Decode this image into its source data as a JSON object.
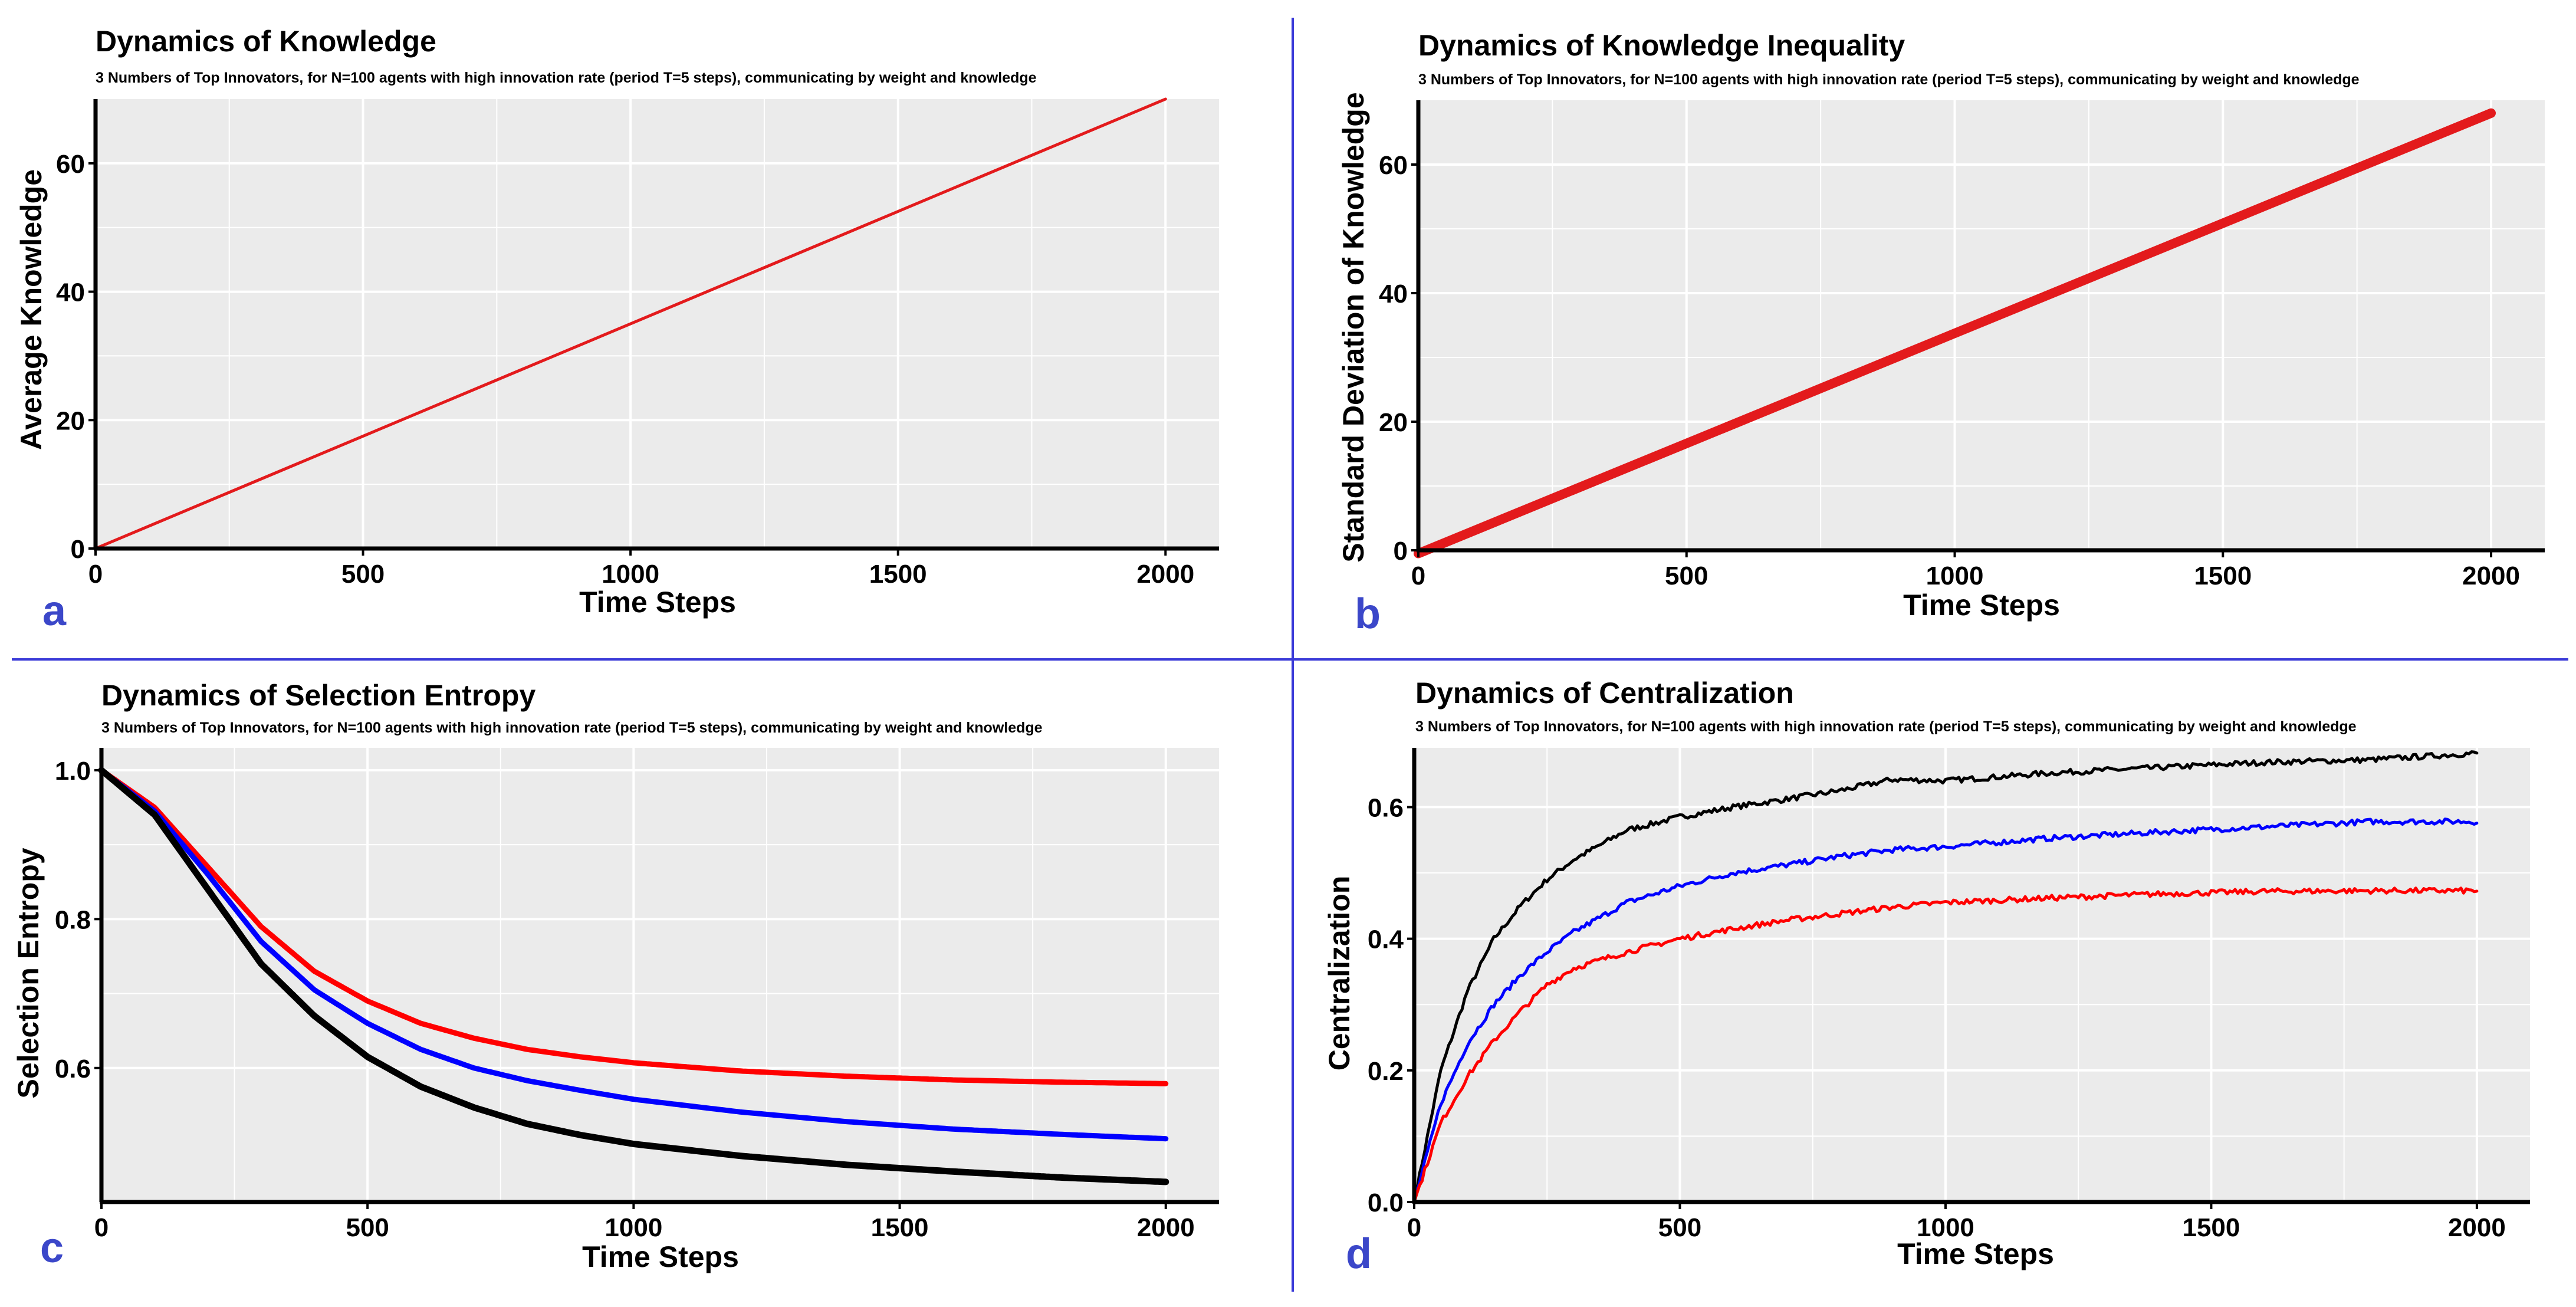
{
  "figure": {
    "divider_color": "#3a3ad8",
    "panel_background": "#ebebeb",
    "grid_color": "#ffffff",
    "letter_color": "#3b47c9"
  },
  "chart_data": [
    {
      "id": "a",
      "panel_letter": "a",
      "type": "line",
      "title": "Dynamics of Knowledge",
      "subtitle": "3 Numbers of Top Innovators, for N=100 agents with high innovation rate (period T=5 steps), communicating by weight and knowledge",
      "xlabel": "Time Steps",
      "ylabel": "Average Knowledge",
      "xlim": [
        0,
        2100
      ],
      "ylim": [
        0,
        70
      ],
      "xticks": [
        0,
        500,
        1000,
        1500,
        2000
      ],
      "yticks": [
        0,
        20,
        40,
        60
      ],
      "ytick_labels": [
        "0",
        "20",
        "40",
        "60"
      ],
      "series": [
        {
          "name": "average knowledge",
          "color": "#e31a1c",
          "stroke": 5,
          "kind": "linear",
          "x": [
            0,
            2000
          ],
          "y": [
            0,
            70
          ]
        }
      ]
    },
    {
      "id": "b",
      "panel_letter": "b",
      "type": "line",
      "title": "Dynamics of Knowledge Inequality",
      "subtitle": "3 Numbers of Top Innovators, for N=100 agents with high innovation rate (period T=5 steps), communicating by weight and knowledge",
      "xlabel": "Time Steps",
      "ylabel": "Standard Deviation of Knowledge",
      "xlim": [
        0,
        2100
      ],
      "ylim": [
        0,
        70
      ],
      "xticks": [
        0,
        500,
        1000,
        1500,
        2000
      ],
      "yticks": [
        0,
        20,
        40,
        60
      ],
      "ytick_labels": [
        "0",
        "20",
        "40",
        "60"
      ],
      "series": [
        {
          "name": "std of knowledge",
          "color": "#e31a1c",
          "stroke": 16,
          "kind": "linear",
          "x": [
            0,
            2000
          ],
          "y": [
            -0.5,
            68
          ]
        }
      ]
    },
    {
      "id": "c",
      "panel_letter": "c",
      "type": "line",
      "title": "Dynamics of Selection Entropy",
      "subtitle": "3 Numbers of Top Innovators, for N=100 agents with high innovation rate (period T=5 steps), communicating by weight and knowledge",
      "xlabel": "Time Steps",
      "ylabel": "Selection Entropy",
      "xlim": [
        0,
        2100
      ],
      "ylim": [
        0.42,
        1.03
      ],
      "xticks": [
        0,
        500,
        1000,
        1500,
        2000
      ],
      "yticks": [
        0.6,
        0.8,
        1.0
      ],
      "ytick_labels": [
        "0.6",
        "0.8",
        "1.0"
      ],
      "series": [
        {
          "name": "red",
          "color": "#ff0000",
          "stroke": 9,
          "kind": "smooth",
          "x": [
            0,
            100,
            200,
            300,
            400,
            500,
            600,
            700,
            800,
            900,
            1000,
            1200,
            1400,
            1600,
            1800,
            2000
          ],
          "y": [
            1.0,
            0.95,
            0.87,
            0.79,
            0.73,
            0.69,
            0.66,
            0.64,
            0.625,
            0.615,
            0.607,
            0.596,
            0.589,
            0.584,
            0.581,
            0.579
          ]
        },
        {
          "name": "blue",
          "color": "#0000ff",
          "stroke": 9,
          "kind": "smooth",
          "x": [
            0,
            100,
            200,
            300,
            400,
            500,
            600,
            700,
            800,
            900,
            1000,
            1200,
            1400,
            1600,
            1800,
            2000
          ],
          "y": [
            1.0,
            0.945,
            0.86,
            0.77,
            0.705,
            0.66,
            0.625,
            0.6,
            0.583,
            0.57,
            0.558,
            0.541,
            0.528,
            0.518,
            0.511,
            0.505
          ]
        },
        {
          "name": "black",
          "color": "#000000",
          "stroke": 11,
          "kind": "smooth",
          "x": [
            0,
            100,
            200,
            300,
            400,
            500,
            600,
            700,
            800,
            900,
            1000,
            1200,
            1400,
            1600,
            1800,
            2000
          ],
          "y": [
            1.0,
            0.94,
            0.84,
            0.74,
            0.67,
            0.615,
            0.575,
            0.547,
            0.525,
            0.51,
            0.498,
            0.482,
            0.47,
            0.461,
            0.453,
            0.447
          ]
        }
      ]
    },
    {
      "id": "d",
      "panel_letter": "d",
      "type": "line",
      "title": "Dynamics of Centralization",
      "subtitle": "3 Numbers of Top Innovators, for N=100 agents with high innovation rate (period T=5 steps), communicating by weight and knowledge",
      "xlabel": "Time Steps",
      "ylabel": "Centralization",
      "xlim": [
        0,
        2100
      ],
      "ylim": [
        0,
        0.69
      ],
      "xticks": [
        0,
        500,
        1000,
        1500,
        2000
      ],
      "yticks": [
        0.0,
        0.2,
        0.4,
        0.6
      ],
      "ytick_labels": [
        "0.0",
        "0.2",
        "0.4",
        "0.6"
      ],
      "series": [
        {
          "name": "black",
          "color": "#000000",
          "stroke": 5,
          "kind": "noisy",
          "x": [
            0,
            50,
            100,
            150,
            200,
            250,
            300,
            400,
            500,
            600,
            700,
            800,
            900,
            1000,
            1200,
            1400,
            1600,
            1800,
            2000
          ],
          "y": [
            0.0,
            0.2,
            0.32,
            0.4,
            0.45,
            0.49,
            0.52,
            0.565,
            0.585,
            0.6,
            0.612,
            0.625,
            0.642,
            0.64,
            0.652,
            0.66,
            0.668,
            0.672,
            0.682
          ]
        },
        {
          "name": "blue",
          "color": "#0000ff",
          "stroke": 5,
          "kind": "noisy",
          "x": [
            0,
            50,
            100,
            150,
            200,
            250,
            300,
            400,
            500,
            600,
            700,
            800,
            900,
            1000,
            1200,
            1400,
            1600,
            1800,
            2000
          ],
          "y": [
            0.0,
            0.15,
            0.24,
            0.3,
            0.345,
            0.38,
            0.41,
            0.455,
            0.48,
            0.5,
            0.512,
            0.525,
            0.535,
            0.54,
            0.553,
            0.562,
            0.57,
            0.578,
            0.578
          ]
        },
        {
          "name": "red",
          "color": "#ff0000",
          "stroke": 5,
          "kind": "noisy",
          "x": [
            0,
            50,
            100,
            150,
            200,
            250,
            300,
            400,
            500,
            600,
            700,
            800,
            900,
            1000,
            1200,
            1400,
            1600,
            1800,
            2000
          ],
          "y": [
            0.0,
            0.12,
            0.19,
            0.245,
            0.29,
            0.33,
            0.355,
            0.38,
            0.4,
            0.415,
            0.428,
            0.438,
            0.448,
            0.455,
            0.462,
            0.468,
            0.472,
            0.473,
            0.473
          ]
        }
      ]
    }
  ]
}
